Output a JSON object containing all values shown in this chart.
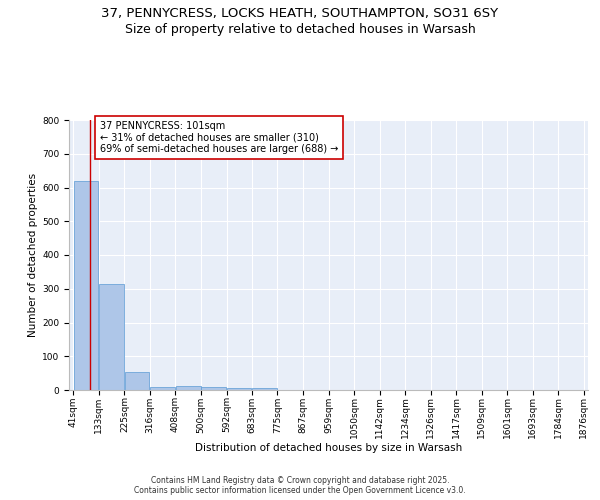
{
  "title_line1": "37, PENNYCRESS, LOCKS HEATH, SOUTHAMPTON, SO31 6SY",
  "title_line2": "Size of property relative to detached houses in Warsash",
  "xlabel": "Distribution of detached houses by size in Warsash",
  "ylabel": "Number of detached properties",
  "bin_edges": [
    41,
    133,
    225,
    316,
    408,
    500,
    592,
    683,
    775,
    867,
    959,
    1050,
    1142,
    1234,
    1326,
    1417,
    1509,
    1601,
    1693,
    1784,
    1876
  ],
  "bar_values": [
    620,
    315,
    52,
    10,
    12,
    10,
    5,
    7,
    0,
    0,
    0,
    0,
    0,
    0,
    0,
    0,
    0,
    0,
    0,
    0
  ],
  "bar_color": "#aec6e8",
  "bar_edge_color": "#5b9bd5",
  "red_line_x": 101,
  "red_line_color": "#cc0000",
  "annotation_text": "37 PENNYCRESS: 101sqm\n← 31% of detached houses are smaller (310)\n69% of semi-detached houses are larger (688) →",
  "annotation_box_color": "#ffffff",
  "annotation_box_edge": "#cc0000",
  "ylim": [
    0,
    800
  ],
  "yticks": [
    0,
    100,
    200,
    300,
    400,
    500,
    600,
    700,
    800
  ],
  "background_color": "#e8eef8",
  "grid_color": "#ffffff",
  "footer_text": "Contains HM Land Registry data © Crown copyright and database right 2025.\nContains public sector information licensed under the Open Government Licence v3.0.",
  "title_fontsize": 9.5,
  "subtitle_fontsize": 9,
  "axis_label_fontsize": 7.5,
  "tick_fontsize": 6.5,
  "annotation_fontsize": 7,
  "footer_fontsize": 5.5
}
